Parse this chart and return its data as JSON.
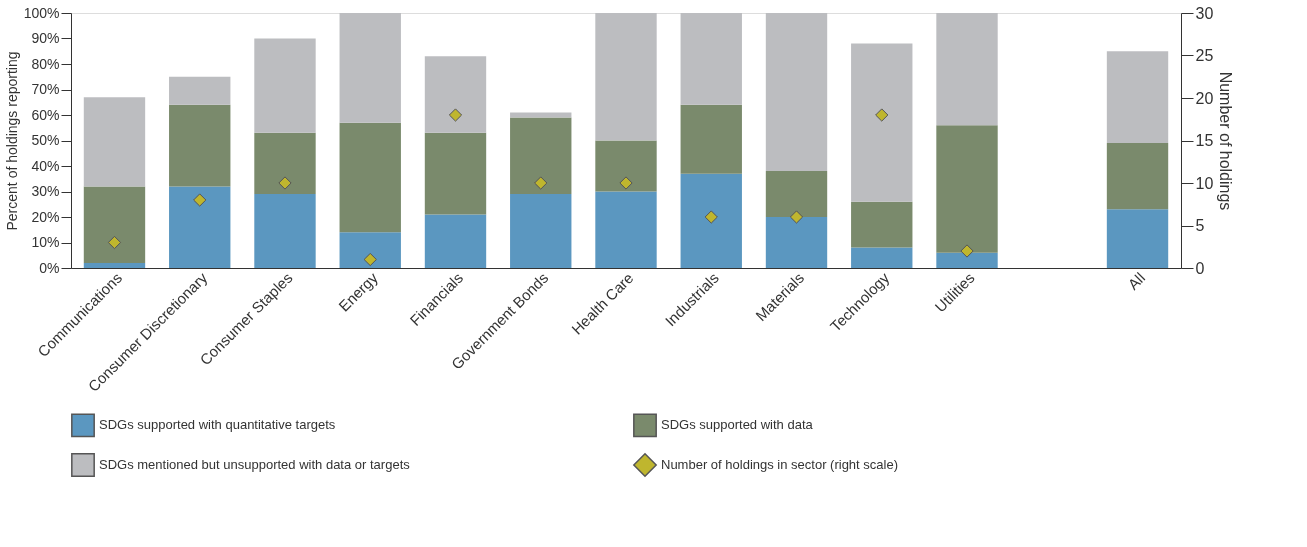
{
  "chart_data": {
    "type": "bar",
    "stacked": true,
    "ylabel": "Percent of holdings reporting",
    "y2label": "Number of holdings",
    "categories": [
      "Communications",
      "Consumer Discretionary",
      "Consumer Staples",
      "Energy",
      "Financials",
      "Government Bonds",
      "Health Care",
      "Industrials",
      "Materials",
      "Technology",
      "Utilities",
      null,
      "All"
    ],
    "series": [
      {
        "name": "SDGs supported with quantitative targets",
        "color": "#5b97c0",
        "values": [
          2,
          32,
          29,
          14,
          21,
          29,
          30,
          37,
          20,
          8,
          6,
          null,
          23
        ]
      },
      {
        "name": "SDGs supported with data",
        "color": "#7a8a6c",
        "values": [
          30,
          32,
          24,
          43,
          32,
          30,
          20,
          27,
          18,
          18,
          50,
          null,
          26
        ]
      },
      {
        "name": "SDGs mentioned but unsupported with data or targets",
        "color": "#bcbdc0",
        "values": [
          35,
          11,
          37,
          43,
          30,
          2,
          50,
          36,
          62,
          62,
          44,
          null,
          36
        ]
      },
      {
        "name": "Number of holdings in sector (right scale)",
        "type": "scatter",
        "axis": "y2",
        "marker": "diamond",
        "color": "#bfb62e",
        "values": [
          3,
          8,
          10,
          1,
          18,
          10,
          10,
          6,
          6,
          18,
          2,
          null,
          null
        ]
      }
    ],
    "ylim": [
      0,
      100
    ],
    "yticks": [
      {
        "value": 0,
        "label": "0%"
      },
      {
        "value": 10,
        "label": "10%"
      },
      {
        "value": 20,
        "label": "20%"
      },
      {
        "value": 30,
        "label": "30%"
      },
      {
        "value": 40,
        "label": "40%"
      },
      {
        "value": 50,
        "label": "50%"
      },
      {
        "value": 60,
        "label": "60%"
      },
      {
        "value": 70,
        "label": "70%"
      },
      {
        "value": 80,
        "label": "80%"
      },
      {
        "value": 90,
        "label": "90%"
      },
      {
        "value": 100,
        "label": "100%"
      }
    ],
    "y2lim": [
      0,
      30
    ],
    "y2ticks": [
      0,
      5,
      10,
      15,
      20,
      25,
      30
    ],
    "grid": false,
    "legend": "bottom"
  }
}
